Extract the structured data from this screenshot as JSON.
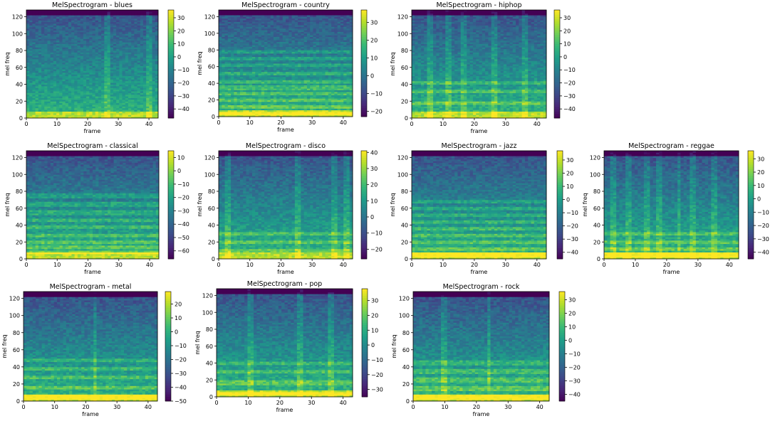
{
  "chart_data": [
    {
      "type": "heatmap",
      "title": "MelSpectrogram - blues",
      "xlabel": "frame",
      "ylabel": "mel freq",
      "xlim": [
        0,
        43
      ],
      "ylim": [
        0,
        128
      ],
      "xticks": [
        0,
        10,
        20,
        30,
        40
      ],
      "yticks": [
        0,
        20,
        40,
        60,
        80,
        100,
        120
      ],
      "colorbar": {
        "vmin": -47,
        "vmax": 36,
        "ticks": [
          30,
          20,
          10,
          0,
          -10,
          -20,
          -30,
          -40
        ],
        "colormap": "viridis"
      },
      "features": {
        "breaks": [
          26,
          40
        ],
        "bright_rows": []
      }
    },
    {
      "type": "heatmap",
      "title": "MelSpectrogram - country",
      "xlabel": "frame",
      "ylabel": "mel freq",
      "xlim": [
        0,
        43
      ],
      "ylim": [
        0,
        128
      ],
      "xticks": [
        0,
        10,
        20,
        30,
        40
      ],
      "yticks": [
        0,
        20,
        40,
        60,
        80,
        100,
        120
      ],
      "colorbar": {
        "vmin": -23,
        "vmax": 37,
        "ticks": [
          30,
          20,
          10,
          0,
          -10,
          -20
        ],
        "colormap": "viridis"
      },
      "features": {
        "breaks": [],
        "bright_rows": [
          4,
          12,
          20,
          28,
          35,
          42,
          52,
          62,
          70,
          78
        ]
      }
    },
    {
      "type": "heatmap",
      "title": "MelSpectrogram - hiphop",
      "xlabel": "frame",
      "ylabel": "mel freq",
      "xlim": [
        0,
        43
      ],
      "ylim": [
        0,
        128
      ],
      "xticks": [
        0,
        10,
        20,
        30,
        40
      ],
      "yticks": [
        0,
        20,
        40,
        60,
        80,
        100,
        120
      ],
      "colorbar": {
        "vmin": -47,
        "vmax": 36,
        "ticks": [
          30,
          20,
          10,
          0,
          -10,
          -20,
          -30,
          -40
        ],
        "colormap": "viridis"
      },
      "features": {
        "breaks": [
          6,
          12,
          17,
          26,
          36
        ],
        "bright_rows": [
          18,
          32,
          42
        ]
      }
    },
    {
      "type": "heatmap",
      "title": "MelSpectrogram - classical",
      "xlabel": "frame",
      "ylabel": "mel freq",
      "xlim": [
        0,
        43
      ],
      "ylim": [
        0,
        128
      ],
      "xticks": [
        0,
        10,
        20,
        30,
        40
      ],
      "yticks": [
        0,
        20,
        40,
        60,
        80,
        100,
        120
      ],
      "colorbar": {
        "vmin": -66,
        "vmax": 15,
        "ticks": [
          10,
          0,
          -10,
          -20,
          -30,
          -40,
          -50,
          -60
        ],
        "colormap": "viridis"
      },
      "features": {
        "breaks": [],
        "bright_rows": [
          8,
          14,
          20,
          28,
          38,
          46,
          55,
          65,
          75
        ]
      }
    },
    {
      "type": "heatmap",
      "title": "MelSpectrogram - disco",
      "xlabel": "frame",
      "ylabel": "mel freq",
      "xlim": [
        0,
        43
      ],
      "ylim": [
        0,
        128
      ],
      "xticks": [
        0,
        10,
        20,
        30,
        40
      ],
      "yticks": [
        0,
        20,
        40,
        60,
        80,
        100,
        120
      ],
      "colorbar": {
        "vmin": -26,
        "vmax": 41,
        "ticks": [
          40,
          30,
          20,
          10,
          0,
          -10,
          -20
        ],
        "colormap": "viridis"
      },
      "features": {
        "breaks": [
          3,
          25,
          37,
          41
        ],
        "bright_rows": [
          10,
          20,
          30
        ]
      }
    },
    {
      "type": "heatmap",
      "title": "MelSpectrogram - jazz",
      "xlabel": "frame",
      "ylabel": "mel freq",
      "xlim": [
        0,
        43
      ],
      "ylim": [
        0,
        128
      ],
      "xticks": [
        0,
        10,
        20,
        30,
        40
      ],
      "yticks": [
        0,
        20,
        40,
        60,
        80,
        100,
        120
      ],
      "colorbar": {
        "vmin": -45,
        "vmax": 37,
        "ticks": [
          30,
          20,
          10,
          0,
          -10,
          -20,
          -30,
          -40
        ],
        "colormap": "viridis"
      },
      "features": {
        "breaks": [],
        "bright_rows": [
          5,
          12,
          20,
          28,
          36,
          44,
          52,
          60,
          68
        ]
      }
    },
    {
      "type": "heatmap",
      "title": "MelSpectrogram - reggae",
      "xlabel": "frame",
      "ylabel": "mel freq",
      "xlim": [
        0,
        43
      ],
      "ylim": [
        0,
        128
      ],
      "xticks": [
        0,
        10,
        20,
        30,
        40
      ],
      "yticks": [
        0,
        20,
        40,
        60,
        80,
        100,
        120
      ],
      "colorbar": {
        "vmin": -45,
        "vmax": 36,
        "ticks": [
          30,
          20,
          10,
          0,
          -10,
          -20,
          -30,
          -40
        ],
        "colormap": "viridis"
      },
      "features": {
        "breaks": [
          3,
          8,
          14,
          18,
          24,
          28,
          35
        ],
        "bright_rows": [
          5,
          12,
          20,
          30
        ]
      }
    },
    {
      "type": "heatmap",
      "title": "MelSpectrogram - metal",
      "xlabel": "frame",
      "ylabel": "mel freq",
      "xlim": [
        0,
        43
      ],
      "ylim": [
        0,
        128
      ],
      "xticks": [
        0,
        10,
        20,
        30,
        40
      ],
      "yticks": [
        0,
        20,
        40,
        60,
        80,
        100,
        120
      ],
      "colorbar": {
        "vmin": -50,
        "vmax": 29,
        "ticks": [
          20,
          10,
          0,
          -10,
          -20,
          -30,
          -40,
          -50
        ],
        "colormap": "viridis"
      },
      "features": {
        "breaks": [
          23
        ],
        "bright_rows": [
          5,
          16,
          28,
          38,
          48
        ]
      }
    },
    {
      "type": "heatmap",
      "title": "MelSpectrogram - pop",
      "xlabel": "frame",
      "ylabel": "mel freq",
      "xlim": [
        0,
        43
      ],
      "ylim": [
        0,
        128
      ],
      "xticks": [
        0,
        10,
        20,
        30,
        40
      ],
      "yticks": [
        0,
        20,
        40,
        60,
        80,
        100,
        120
      ],
      "colorbar": {
        "vmin": -35,
        "vmax": 38,
        "ticks": [
          30,
          20,
          10,
          0,
          -10,
          -20,
          -30
        ],
        "colormap": "viridis"
      },
      "features": {
        "breaks": [
          11,
          26,
          36
        ],
        "bright_rows": [
          4,
          17,
          30,
          40
        ]
      }
    },
    {
      "type": "heatmap",
      "title": "MelSpectrogram - rock",
      "xlabel": "frame",
      "ylabel": "mel freq",
      "xlim": [
        0,
        43
      ],
      "ylim": [
        0,
        128
      ],
      "xticks": [
        0,
        10,
        20,
        30,
        40
      ],
      "yticks": [
        0,
        20,
        40,
        60,
        80,
        100,
        120
      ],
      "colorbar": {
        "vmin": -45,
        "vmax": 36,
        "ticks": [
          30,
          20,
          10,
          0,
          -10,
          -20,
          -30,
          -40
        ],
        "colormap": "viridis"
      },
      "features": {
        "breaks": [
          10,
          24
        ],
        "bright_rows": [
          5,
          15,
          25,
          35,
          45
        ]
      }
    }
  ]
}
